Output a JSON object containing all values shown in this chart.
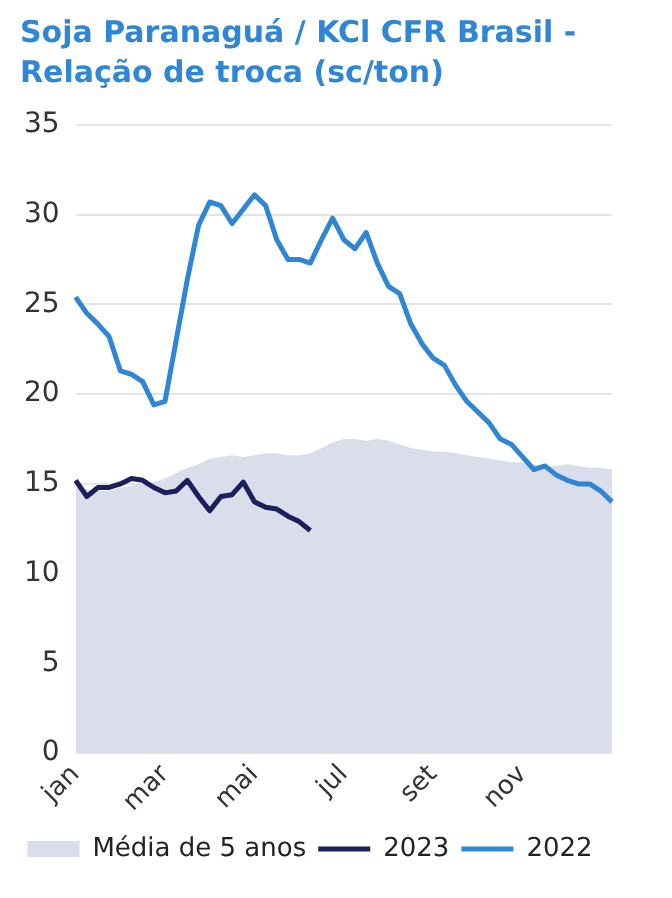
{
  "chart_data": {
    "type": "line",
    "title": "Soja Paranaguá / KCl CFR Brasil - Relação de troca (sc/ton)",
    "categories": [
      "jan",
      null,
      null,
      null,
      null,
      null,
      null,
      null,
      "mar",
      null,
      null,
      null,
      null,
      null,
      null,
      null,
      "mai",
      null,
      null,
      null,
      null,
      null,
      null,
      null,
      "jul",
      null,
      null,
      null,
      null,
      null,
      null,
      null,
      "set",
      null,
      null,
      null,
      null,
      null,
      null,
      null,
      "nov",
      null,
      null,
      null,
      null,
      null,
      null,
      null,
      null
    ],
    "ylim": [
      0,
      35
    ],
    "yticks": [
      0,
      5,
      10,
      15,
      20,
      25,
      30,
      35
    ],
    "grid": "y",
    "legend": "bottom",
    "marker": "none",
    "series": [
      {
        "name": "Média de 5 anos",
        "type": "area",
        "color": "#dadeea",
        "values": [
          14.8,
          14.7,
          14.6,
          14.6,
          14.8,
          14.9,
          15.0,
          15.1,
          15.3,
          15.6,
          15.9,
          16.1,
          16.4,
          16.5,
          16.6,
          16.5,
          16.6,
          16.7,
          16.7,
          16.6,
          16.6,
          16.7,
          17.0,
          17.3,
          17.5,
          17.5,
          17.4,
          17.5,
          17.4,
          17.2,
          17.0,
          16.9,
          16.8,
          16.8,
          16.7,
          16.6,
          16.5,
          16.4,
          16.3,
          16.2,
          16.2,
          16.1,
          16.0,
          16.0,
          16.1,
          16.0,
          15.9,
          15.9,
          15.8
        ]
      },
      {
        "name": "2023",
        "color": "#1b1f5e",
        "values": [
          15.2,
          14.3,
          14.8,
          14.8,
          15.0,
          15.3,
          15.2,
          14.8,
          14.5,
          14.6,
          15.2,
          14.3,
          13.5,
          14.3,
          14.4,
          15.1,
          14.0,
          13.7,
          13.6,
          13.2,
          12.9,
          12.4,
          null,
          null,
          null,
          null,
          null,
          null,
          null,
          null,
          null,
          null,
          null,
          null,
          null,
          null,
          null,
          null,
          null,
          null,
          null,
          null,
          null,
          null,
          null,
          null,
          null,
          null,
          null
        ]
      },
      {
        "name": "2022",
        "color": "#2e86d4",
        "values": [
          25.4,
          24.5,
          23.9,
          23.2,
          21.3,
          21.1,
          20.7,
          19.4,
          19.6,
          23.0,
          26.4,
          29.4,
          30.7,
          30.5,
          29.5,
          30.3,
          31.1,
          30.5,
          28.6,
          27.5,
          27.5,
          27.3,
          28.6,
          29.8,
          28.6,
          28.1,
          29.0,
          27.3,
          26.0,
          25.6,
          23.9,
          22.8,
          22.0,
          21.6,
          20.5,
          19.6,
          19.0,
          18.4,
          17.5,
          17.2,
          16.5,
          15.8,
          16.0,
          15.5,
          15.2,
          15.0,
          15.0,
          14.6,
          14.0
        ]
      }
    ]
  }
}
